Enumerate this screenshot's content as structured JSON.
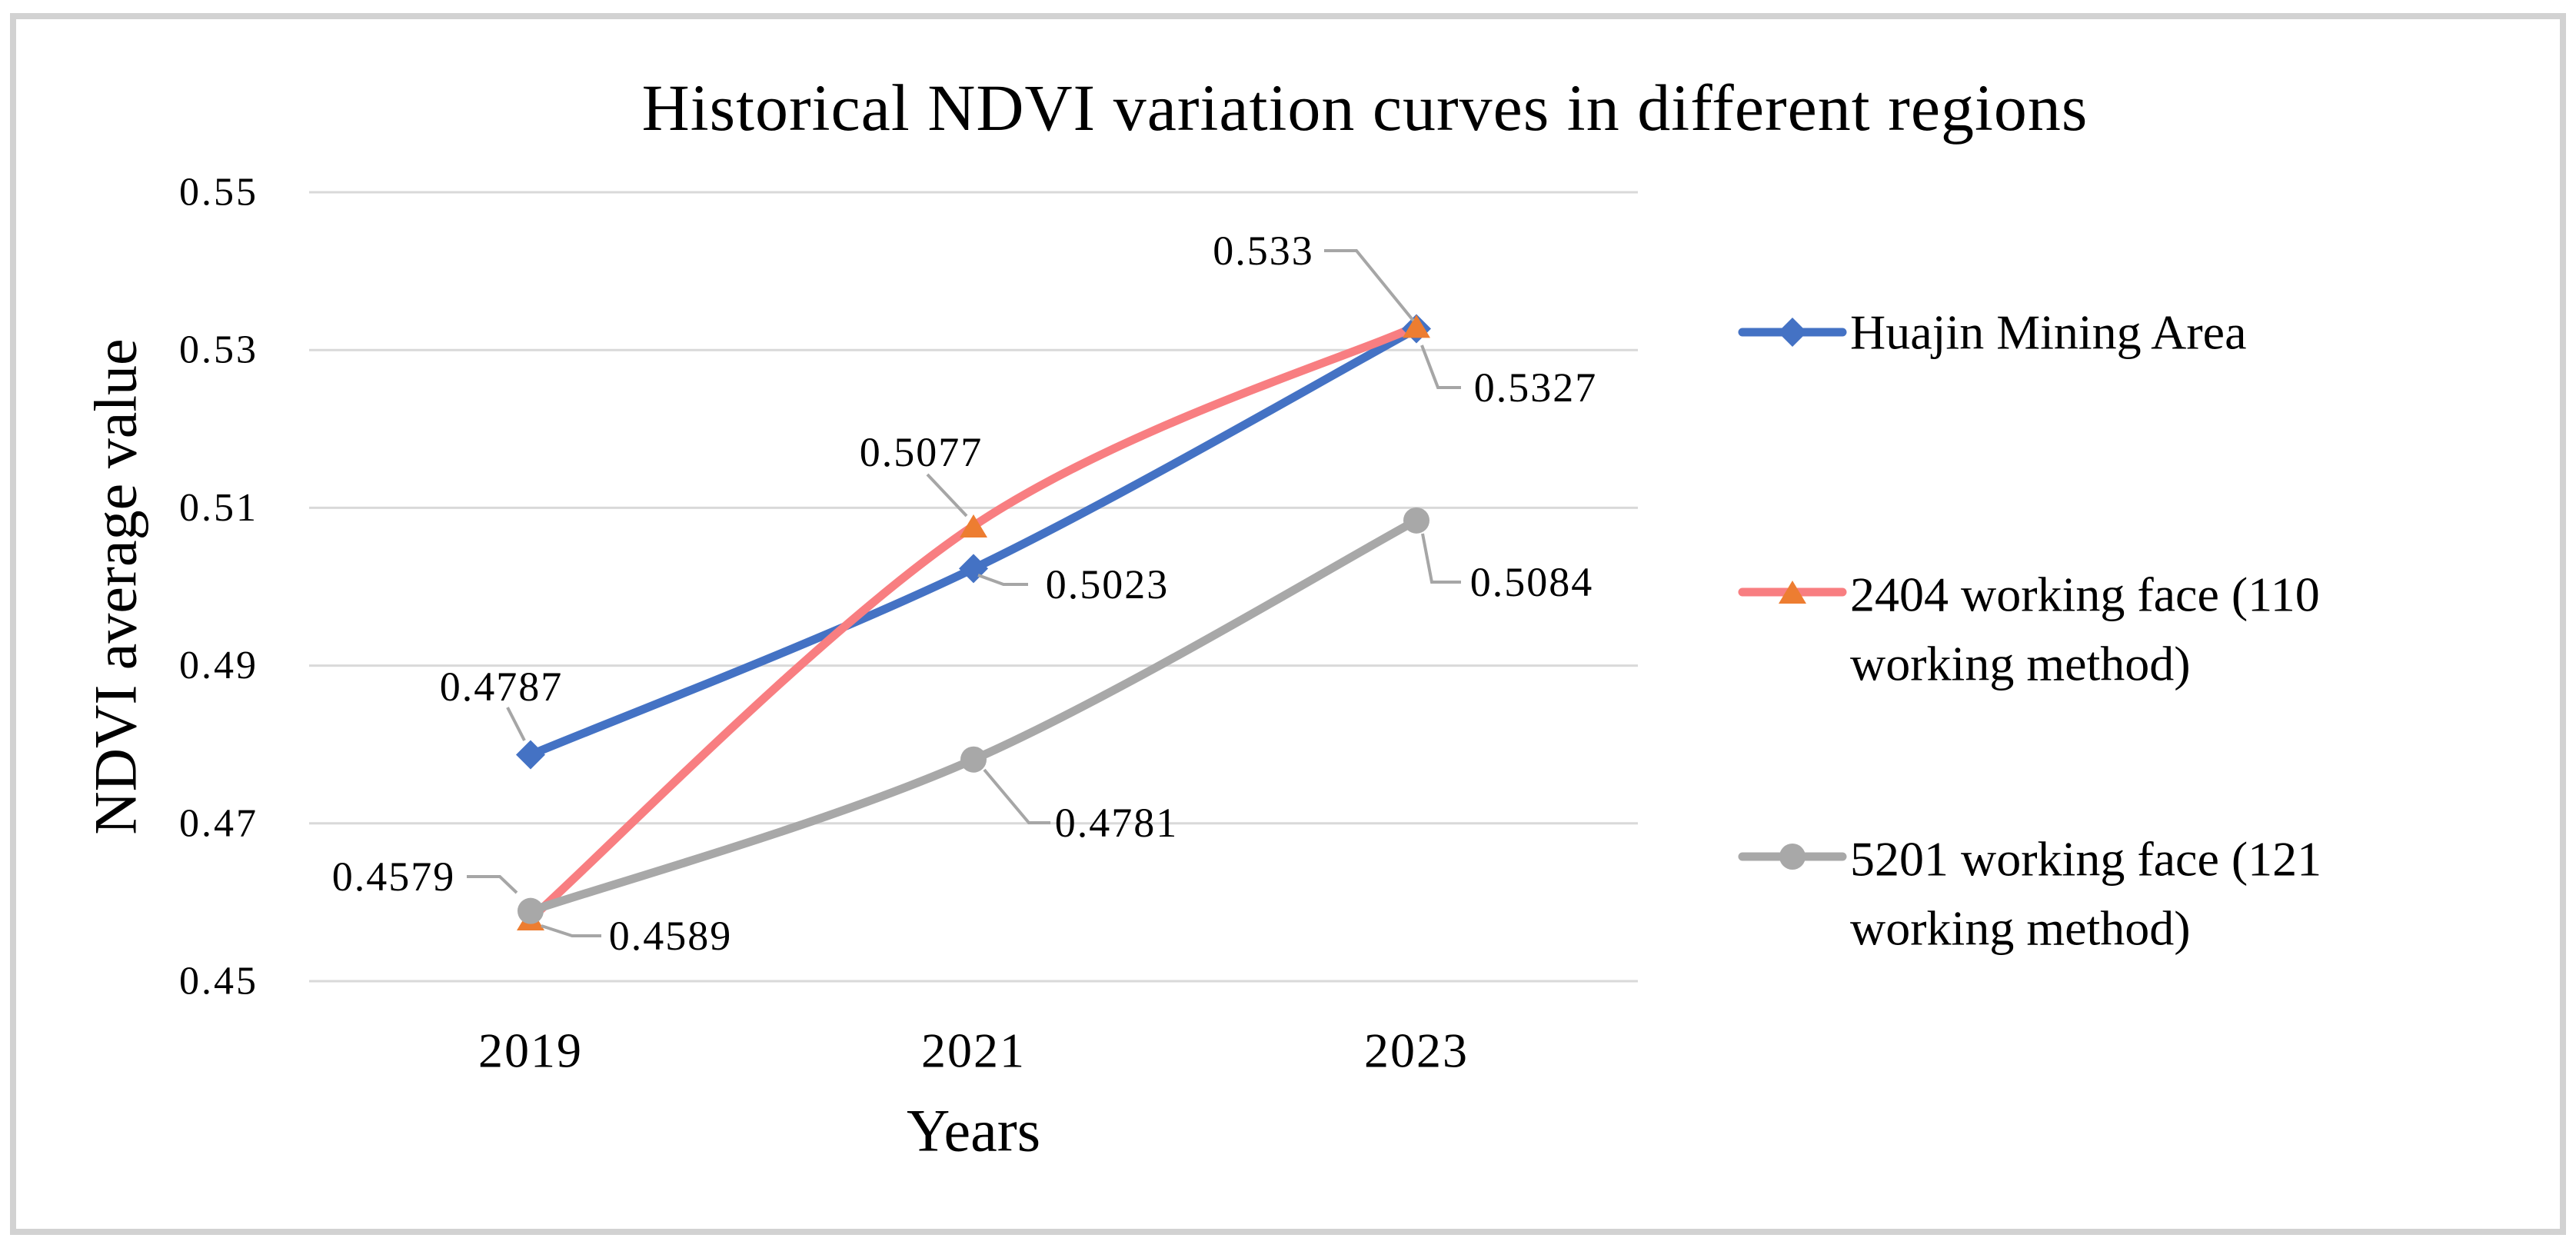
{
  "figure": {
    "border_color": "#d2d2d2",
    "background_color": "#ffffff",
    "gridline_color": "#d9d9d9",
    "leader_color": "#a6a6a6"
  },
  "chart_data": {
    "type": "line",
    "title": "Historical NDVI variation curves in different regions",
    "xlabel": "Years",
    "ylabel": "NDVI average value",
    "categories": [
      "2019",
      "2021",
      "2023"
    ],
    "ylim": [
      0.45,
      0.55
    ],
    "y_tick_labels": [
      "0.55",
      "0.53",
      "0.51",
      "0.49",
      "0.47",
      "0.45"
    ],
    "grid": true,
    "legend_position": "right",
    "line_smoothing": true,
    "series": [
      {
        "name": "Huajin Mining Area",
        "name_lines": [
          "Huajin Mining Area"
        ],
        "marker": "diamond",
        "line_color": "#4472c4",
        "marker_color": "#4472c4",
        "values": [
          0.4787,
          0.5023,
          0.5327
        ],
        "point_labels": [
          "0.4787",
          "0.5023",
          "0.5327"
        ]
      },
      {
        "name": "2404 working face (110 working method)",
        "name_lines": [
          "2404 working face (110",
          "working method)"
        ],
        "marker": "triangle",
        "line_color": "#f87e81",
        "marker_color": "#ed7d31",
        "values": [
          0.4579,
          0.5077,
          0.533
        ],
        "point_labels": [
          "0.4579",
          "0.5077",
          "0.533"
        ]
      },
      {
        "name": "5201 working face (121 working method)",
        "name_lines": [
          "5201 working face (121",
          "working method)"
        ],
        "marker": "circle",
        "line_color": "#a8a8a8",
        "marker_color": "#a8a8a8",
        "values": [
          0.4589,
          0.4781,
          0.5084
        ],
        "point_labels": [
          "0.4589",
          "0.4781",
          "0.5084"
        ]
      }
    ]
  }
}
